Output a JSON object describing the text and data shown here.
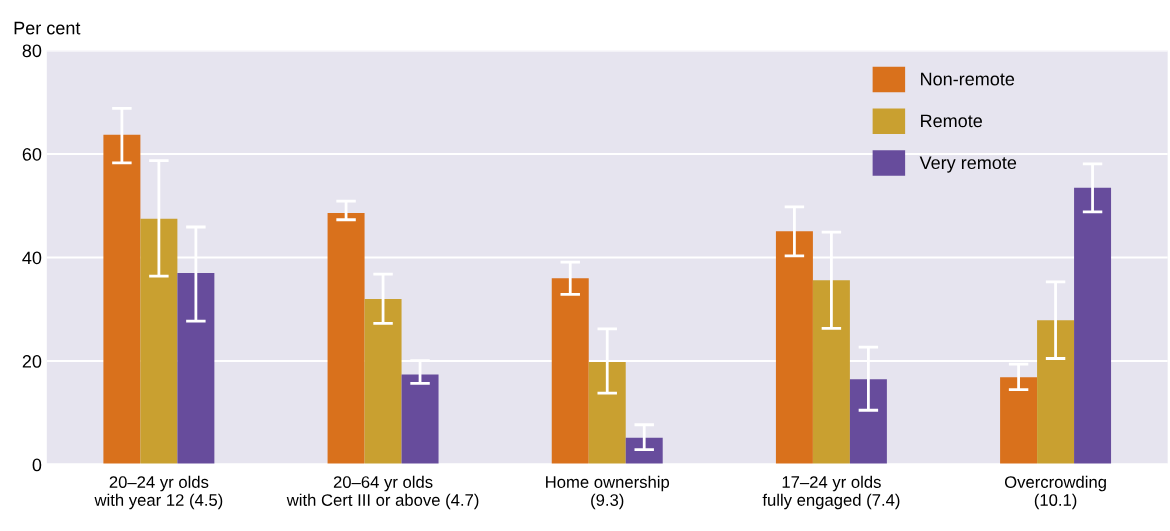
{
  "chart_data": {
    "type": "bar",
    "ylabel": "Per cent",
    "categories": [
      "20–24 yr olds\nwith year 12 (4.5)",
      "20–64 yr olds\nwith Cert III or above (4.7)",
      "Home ownership\n(9.3)",
      "17–24 yr olds\nfully engaged (7.4)",
      "Overcrowding\n(10.1)"
    ],
    "series": [
      {
        "name": "Non-remote",
        "color": "#d9711c",
        "values": [
          63.7,
          48.6,
          36.0,
          45.1,
          16.9
        ],
        "errors": [
          [
            58.3,
            68.8
          ],
          [
            47.3,
            50.9
          ],
          [
            32.9,
            39.1
          ],
          [
            40.3,
            49.8
          ],
          [
            14.5,
            19.4
          ]
        ]
      },
      {
        "name": "Remote",
        "color": "#c9a030",
        "values": [
          47.5,
          32.0,
          19.8,
          35.6,
          27.9
        ],
        "errors": [
          [
            36.4,
            58.7
          ],
          [
            27.3,
            36.8
          ],
          [
            13.8,
            26.2
          ],
          [
            26.3,
            44.9
          ],
          [
            20.5,
            35.3
          ]
        ]
      },
      {
        "name": "Very remote",
        "color": "#674c9c",
        "values": [
          37.0,
          17.4,
          5.2,
          16.5,
          53.5
        ],
        "errors": [
          [
            27.7,
            45.9
          ],
          [
            15.7,
            20.1
          ],
          [
            2.9,
            7.7
          ],
          [
            10.5,
            22.7
          ],
          [
            48.8,
            58.1
          ]
        ]
      }
    ],
    "ylim": [
      0,
      80
    ],
    "yticks": [
      0,
      20,
      40,
      60,
      80
    ],
    "grid": "y",
    "legend": "top right"
  }
}
